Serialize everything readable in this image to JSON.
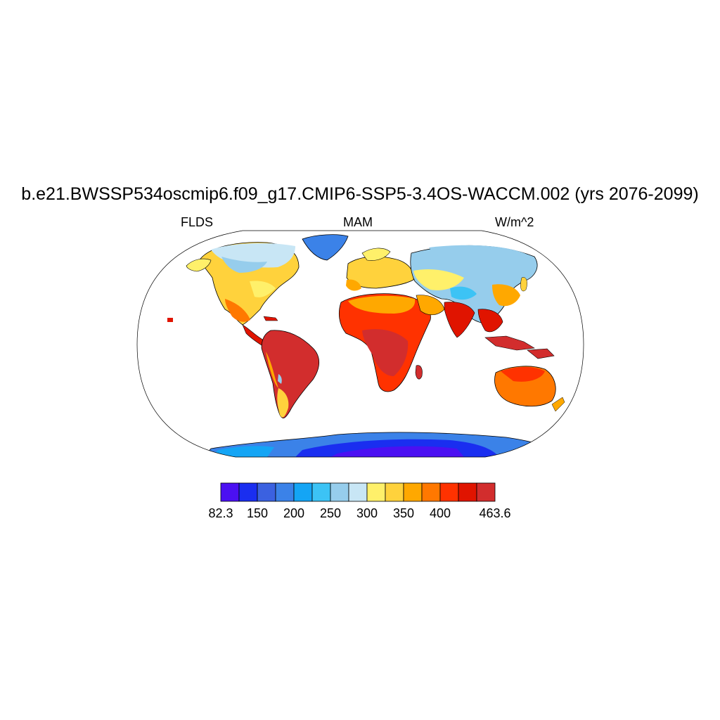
{
  "title": "b.e21.BWSSP534oscmip6.f09_g17.CMIP6-SSP5-3.4OS-WACCM.002 (yrs 2076-2099)",
  "left_label": "FLDS",
  "center_label": "MAM",
  "right_label": "W/m^2",
  "colorbar": {
    "colors": [
      "#4b10f2",
      "#1a2ef0",
      "#3b61e0",
      "#3b82e8",
      "#14a5f5",
      "#3cc3f5",
      "#96cdec",
      "#c8e6f5",
      "#fff06a",
      "#ffd23c",
      "#ffa800",
      "#ff7800",
      "#ff3200",
      "#e01400",
      "#d22d2d"
    ],
    "labels": [
      {
        "text": "82.3",
        "boundary": 0
      },
      {
        "text": "150",
        "boundary": 2
      },
      {
        "text": "200",
        "boundary": 4
      },
      {
        "text": "250",
        "boundary": 6
      },
      {
        "text": "300",
        "boundary": 8
      },
      {
        "text": "350",
        "boundary": 10
      },
      {
        "text": "400",
        "boundary": 12
      },
      {
        "text": "463.6",
        "boundary": 15
      }
    ]
  }
}
